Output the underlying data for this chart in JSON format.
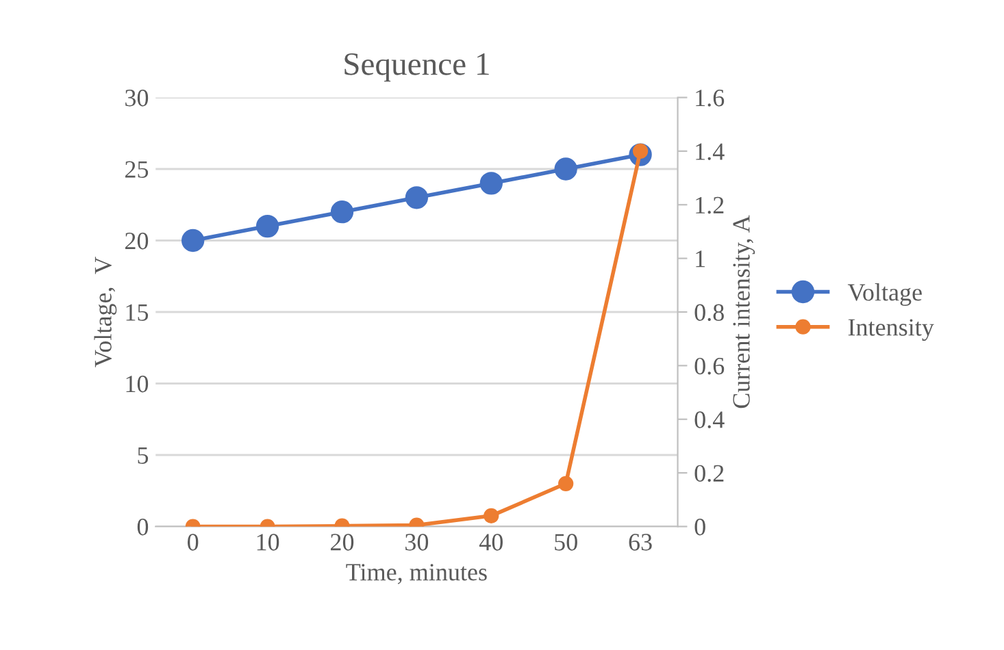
{
  "chart_data": {
    "type": "line",
    "title": "Sequence 1",
    "xlabel": "Time, minutes",
    "ylabel": "Voltage,  V",
    "y2label": "Current intensity, A",
    "categories": [
      "0",
      "10",
      "20",
      "30",
      "40",
      "50",
      "63"
    ],
    "series": [
      {
        "name": "Voltage",
        "color": "#4472c4",
        "values": [
          20,
          21,
          22,
          23,
          24,
          25,
          26
        ]
      },
      {
        "name": "Intensity",
        "color": "#ed7d31",
        "axis": "y2",
        "values": [
          0,
          0,
          0.002,
          0.005,
          0.04,
          0.16,
          1.4
        ]
      }
    ],
    "ylim": [
      0,
      30
    ],
    "yticks": [
      0,
      5,
      10,
      15,
      20,
      25,
      30
    ],
    "y2lim": [
      0,
      1.6
    ],
    "y2ticks": [
      0,
      0.2,
      0.4,
      0.6,
      0.8,
      1,
      1.2,
      1.4,
      1.6
    ],
    "grid": true,
    "legend": "right",
    "marker": "circle",
    "line_style": "solid"
  }
}
